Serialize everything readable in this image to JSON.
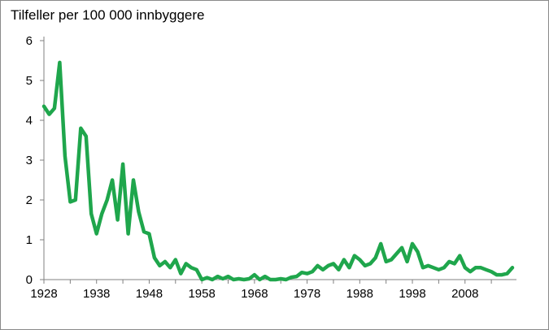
{
  "chart_data": {
    "type": "line",
    "title": "",
    "ylabel": "Tilfeller per 100 000 innbyggere",
    "xlabel": "",
    "xlim": [
      1928,
      2017
    ],
    "ylim": [
      0,
      6
    ],
    "yticks": [
      0,
      1,
      2,
      3,
      4,
      5,
      6
    ],
    "xticks": [
      1928,
      1938,
      1948,
      1958,
      1968,
      1978,
      1988,
      1998,
      2008
    ],
    "grid": false,
    "legend": "none",
    "line_color": "#1fa64c",
    "series": [
      {
        "name": "",
        "x": [
          1928,
          1929,
          1930,
          1931,
          1932,
          1933,
          1934,
          1935,
          1936,
          1937,
          1938,
          1939,
          1940,
          1941,
          1942,
          1943,
          1944,
          1945,
          1946,
          1947,
          1948,
          1949,
          1950,
          1951,
          1952,
          1953,
          1954,
          1955,
          1956,
          1957,
          1958,
          1959,
          1960,
          1961,
          1962,
          1963,
          1964,
          1965,
          1966,
          1967,
          1968,
          1969,
          1970,
          1971,
          1972,
          1973,
          1974,
          1975,
          1976,
          1977,
          1978,
          1979,
          1980,
          1981,
          1982,
          1983,
          1984,
          1985,
          1986,
          1987,
          1988,
          1989,
          1990,
          1991,
          1992,
          1993,
          1994,
          1995,
          1996,
          1997,
          1998,
          1999,
          2000,
          2001,
          2002,
          2003,
          2004,
          2005,
          2006,
          2007,
          2008,
          2009,
          2010,
          2011,
          2012,
          2013,
          2014,
          2015,
          2016,
          2017
        ],
        "values": [
          4.35,
          4.15,
          4.3,
          5.45,
          3.1,
          1.95,
          2.0,
          3.8,
          3.6,
          1.65,
          1.15,
          1.65,
          2.0,
          2.5,
          1.5,
          2.9,
          1.15,
          2.5,
          1.7,
          1.2,
          1.15,
          0.55,
          0.35,
          0.45,
          0.3,
          0.5,
          0.15,
          0.4,
          0.3,
          0.25,
          0.0,
          0.05,
          0.0,
          0.08,
          0.02,
          0.08,
          0.0,
          0.02,
          0.0,
          0.02,
          0.12,
          0.0,
          0.08,
          0.0,
          0.0,
          0.02,
          0.0,
          0.06,
          0.08,
          0.18,
          0.15,
          0.2,
          0.35,
          0.25,
          0.35,
          0.4,
          0.25,
          0.5,
          0.3,
          0.6,
          0.5,
          0.35,
          0.4,
          0.55,
          0.9,
          0.45,
          0.5,
          0.65,
          0.8,
          0.45,
          0.9,
          0.7,
          0.3,
          0.35,
          0.3,
          0.25,
          0.3,
          0.45,
          0.4,
          0.6,
          0.3,
          0.2,
          0.3,
          0.3,
          0.25,
          0.2,
          0.12,
          0.12,
          0.15,
          0.3
        ]
      }
    ]
  }
}
